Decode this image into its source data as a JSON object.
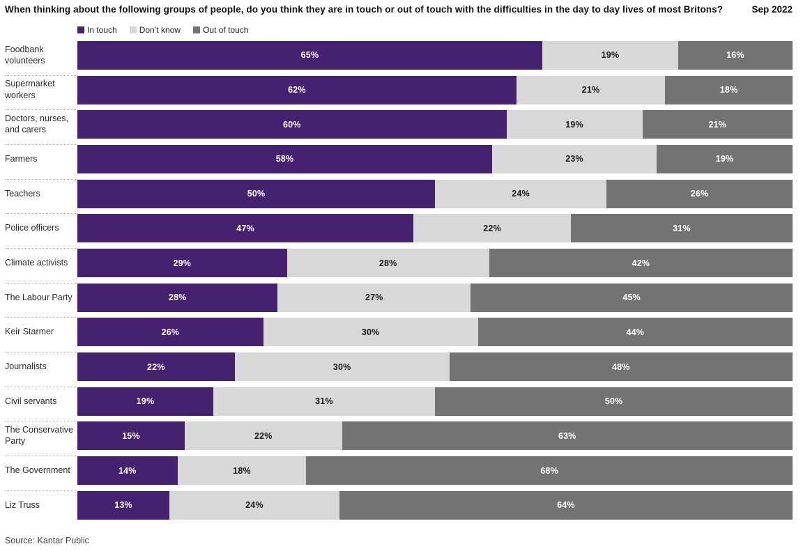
{
  "header": {
    "title": "When thinking about the following groups of people, do you think they are in touch or out of touch with the difficulties in the day to day lives of most Britons?",
    "date": "Sep 2022"
  },
  "source": "Source: Kantar Public",
  "colors": {
    "in_touch": "#452170",
    "dont_know": "#d8d8d8",
    "out_of_touch": "#737373",
    "separator": "#b9b9b9"
  },
  "chart_data": {
    "type": "bar",
    "variant": "horizontal-stacked",
    "stacked": true,
    "unit": "%",
    "legend_position": "top",
    "xlim": [
      0,
      100
    ],
    "categories": [
      "Foodbank volunteers",
      "Supermarket workers",
      "Doctors, nurses, and carers",
      "Farmers",
      "Teachers",
      "Police officers",
      "Climate activists",
      "The Labour Party",
      "Keir Starmer",
      "Journalists",
      "Civil servants",
      "The Conservative Party",
      "The Government",
      "Liz Truss"
    ],
    "series": [
      {
        "name": "In touch",
        "color": "#452170",
        "label_color": "#ffffff",
        "values": [
          65,
          62,
          60,
          58,
          50,
          47,
          29,
          28,
          26,
          22,
          19,
          15,
          14,
          13
        ]
      },
      {
        "name": "Don’t know",
        "color": "#d8d8d8",
        "label_color": "#1a1a1a",
        "values": [
          19,
          21,
          19,
          23,
          24,
          22,
          28,
          27,
          30,
          30,
          31,
          22,
          18,
          24
        ]
      },
      {
        "name": "Out of touch",
        "color": "#737373",
        "label_color": "#ffffff",
        "values": [
          16,
          18,
          21,
          19,
          26,
          31,
          42,
          45,
          44,
          48,
          50,
          63,
          68,
          64
        ]
      }
    ]
  }
}
